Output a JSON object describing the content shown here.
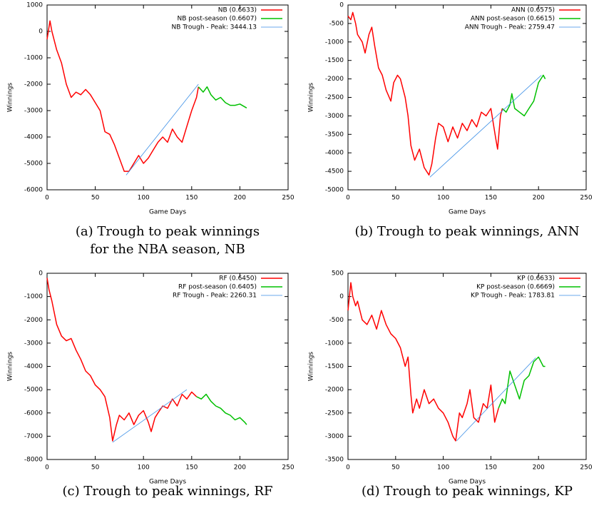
{
  "chart_data": [
    {
      "type": "line",
      "caption": "(a) Trough to peak winnings for the NBA season, NB",
      "x_label": "Game Days",
      "y_label": "Winnings",
      "xlim": [
        0,
        250
      ],
      "xticks": [
        0,
        50,
        100,
        150,
        200,
        250
      ],
      "ylim": [
        -6000,
        1000
      ],
      "yticks": [
        -6000,
        -5000,
        -4000,
        -3000,
        -2000,
        -1000,
        0,
        1000
      ],
      "series": [
        {
          "name": "NB (0.6633)",
          "color": "#ff0000",
          "x": [
            0,
            3,
            5,
            10,
            15,
            20,
            25,
            30,
            35,
            40,
            45,
            50,
            55,
            60,
            65,
            70,
            75,
            80,
            85,
            90,
            95,
            100,
            105,
            110,
            115,
            120,
            125,
            130,
            135,
            140,
            145,
            150,
            155,
            157
          ],
          "values": [
            -300,
            400,
            0,
            -700,
            -1200,
            -2000,
            -2500,
            -2300,
            -2400,
            -2200,
            -2400,
            -2700,
            -3000,
            -3800,
            -3900,
            -4300,
            -4800,
            -5300,
            -5300,
            -5000,
            -4700,
            -5000,
            -4800,
            -4500,
            -4200,
            -4000,
            -4200,
            -3700,
            -4000,
            -4200,
            -3600,
            -3000,
            -2500,
            -2100
          ]
        },
        {
          "name": "NB post-season (0.6607)",
          "color": "#00c000",
          "x": [
            157,
            162,
            166,
            170,
            175,
            180,
            185,
            190,
            195,
            200,
            207
          ],
          "values": [
            -2100,
            -2300,
            -2100,
            -2400,
            -2600,
            -2500,
            -2700,
            -2800,
            -2800,
            -2750,
            -2900
          ]
        },
        {
          "name": "NB Trough - Peak: 3444.13",
          "color": "#3a8ee6",
          "x": [
            82,
            157
          ],
          "values": [
            -5444,
            -2000
          ]
        }
      ]
    },
    {
      "type": "line",
      "caption": "(b) Trough to peak winnings, ANN",
      "x_label": "Game Days",
      "y_label": "Winnings",
      "xlim": [
        0,
        250
      ],
      "xticks": [
        0,
        50,
        100,
        150,
        200,
        250
      ],
      "ylim": [
        -5000,
        0
      ],
      "yticks": [
        -5000,
        -4500,
        -4000,
        -3500,
        -3000,
        -2500,
        -2000,
        -1500,
        -1000,
        -500,
        0
      ],
      "series": [
        {
          "name": "ANN (0.6575)",
          "color": "#ff0000",
          "x": [
            0,
            3,
            5,
            8,
            10,
            15,
            18,
            22,
            25,
            28,
            32,
            36,
            40,
            45,
            48,
            52,
            55,
            60,
            63,
            66,
            70,
            75,
            80,
            85,
            88,
            92,
            95,
            100,
            105,
            110,
            115,
            120,
            125,
            130,
            135,
            140,
            145,
            150,
            155,
            157,
            160,
            162
          ],
          "values": [
            -300,
            -400,
            -200,
            -500,
            -800,
            -1000,
            -1300,
            -800,
            -600,
            -1100,
            -1700,
            -1900,
            -2300,
            -2600,
            -2100,
            -1900,
            -2000,
            -2500,
            -3000,
            -3800,
            -4200,
            -3900,
            -4400,
            -4600,
            -4300,
            -3600,
            -3200,
            -3300,
            -3700,
            -3300,
            -3600,
            -3200,
            -3400,
            -3100,
            -3300,
            -2900,
            -3000,
            -2800,
            -3600,
            -3900,
            -3000,
            -2800
          ]
        },
        {
          "name": "ANN post-season (0.6615)",
          "color": "#00c000",
          "x": [
            162,
            166,
            170,
            172,
            175,
            180,
            185,
            190,
            195,
            200,
            205,
            207
          ],
          "values": [
            -2800,
            -2900,
            -2700,
            -2400,
            -2800,
            -2900,
            -3000,
            -2800,
            -2600,
            -2100,
            -1900,
            -2000
          ]
        },
        {
          "name": "ANN Trough - Peak: 2759.47",
          "color": "#3a8ee6",
          "x": [
            86,
            203
          ],
          "values": [
            -4659,
            -1900
          ]
        }
      ]
    },
    {
      "type": "line",
      "caption": "(c) Trough to peak winnings, RF",
      "x_label": "Game Days",
      "y_label": "Winnings",
      "xlim": [
        0,
        250
      ],
      "xticks": [
        0,
        50,
        100,
        150,
        200,
        250
      ],
      "ylim": [
        -8000,
        0
      ],
      "yticks": [
        -8000,
        -7000,
        -6000,
        -5000,
        -4000,
        -3000,
        -2000,
        -1000,
        0
      ],
      "series": [
        {
          "name": "RF (0.6450)",
          "color": "#ff0000",
          "x": [
            0,
            2,
            5,
            10,
            15,
            20,
            25,
            30,
            35,
            40,
            45,
            50,
            55,
            60,
            65,
            68,
            72,
            75,
            80,
            85,
            90,
            95,
            100,
            105,
            108,
            112,
            115,
            120,
            125,
            130,
            135,
            140,
            145,
            150,
            155
          ],
          "values": [
            -200,
            -700,
            -1200,
            -2200,
            -2700,
            -2900,
            -2800,
            -3300,
            -3700,
            -4200,
            -4400,
            -4800,
            -5000,
            -5300,
            -6200,
            -7200,
            -6500,
            -6100,
            -6300,
            -6000,
            -6500,
            -6100,
            -5900,
            -6400,
            -6800,
            -6200,
            -6000,
            -5700,
            -5800,
            -5400,
            -5700,
            -5200,
            -5400,
            -5100,
            -5300
          ]
        },
        {
          "name": "RF post-season (0.6405)",
          "color": "#00c000",
          "x": [
            155,
            160,
            165,
            170,
            175,
            180,
            185,
            190,
            195,
            200,
            205,
            207
          ],
          "values": [
            -5300,
            -5400,
            -5200,
            -5500,
            -5700,
            -5800,
            -6000,
            -6100,
            -6300,
            -6200,
            -6400,
            -6500
          ]
        },
        {
          "name": "RF Trough - Peak: 2260.31",
          "color": "#3a8ee6",
          "x": [
            68,
            145
          ],
          "values": [
            -7260,
            -5000
          ]
        }
      ]
    },
    {
      "type": "line",
      "caption": "(d) Trough to peak winnings, KP",
      "x_label": "Game Days",
      "y_label": "Winnings",
      "xlim": [
        0,
        250
      ],
      "xticks": [
        0,
        50,
        100,
        150,
        200,
        250
      ],
      "ylim": [
        -3500,
        500
      ],
      "yticks": [
        -3500,
        -3000,
        -2500,
        -2000,
        -1500,
        -1000,
        -500,
        0,
        500
      ],
      "series": [
        {
          "name": "KP (0.6633)",
          "color": "#ff0000",
          "x": [
            0,
            3,
            5,
            8,
            10,
            15,
            20,
            25,
            30,
            35,
            40,
            45,
            50,
            55,
            60,
            63,
            66,
            68,
            72,
            75,
            80,
            85,
            90,
            95,
            100,
            105,
            110,
            113,
            117,
            120,
            125,
            128,
            132,
            137,
            142,
            146,
            150,
            154,
            158
          ],
          "values": [
            -300,
            300,
            0,
            -200,
            -100,
            -500,
            -600,
            -400,
            -700,
            -300,
            -600,
            -800,
            -900,
            -1100,
            -1500,
            -1300,
            -2100,
            -2500,
            -2200,
            -2400,
            -2000,
            -2300,
            -2200,
            -2400,
            -2500,
            -2700,
            -3000,
            -3100,
            -2500,
            -2600,
            -2300,
            -2000,
            -2600,
            -2700,
            -2300,
            -2400,
            -1900,
            -2700,
            -2400
          ]
        },
        {
          "name": "KP post-season (0.6669)",
          "color": "#00c000",
          "x": [
            158,
            162,
            165,
            170,
            175,
            180,
            185,
            190,
            195,
            200,
            205,
            207
          ],
          "values": [
            -2400,
            -2200,
            -2300,
            -1600,
            -1900,
            -2200,
            -1800,
            -1700,
            -1400,
            -1300,
            -1500,
            -1500
          ]
        },
        {
          "name": "KP Trough - Peak: 1783.81",
          "color": "#3a8ee6",
          "x": [
            114,
            197
          ],
          "values": [
            -3100,
            -1316
          ]
        }
      ]
    }
  ]
}
